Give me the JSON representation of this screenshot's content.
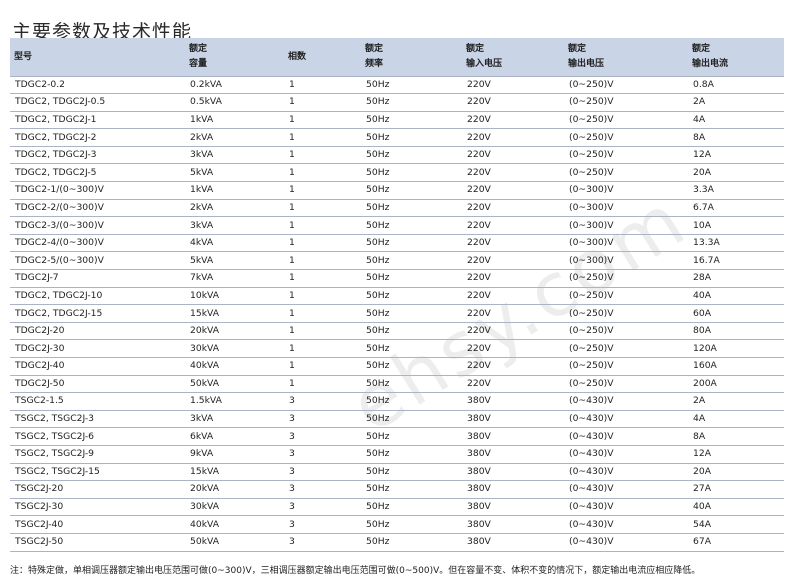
{
  "page_title": "主要参数及技术性能",
  "headers": {
    "model": "型号",
    "capacity_line1": "额定",
    "capacity_line2": "容量",
    "phases": "相数",
    "frequency_line1": "额定",
    "frequency_line2": "频率",
    "input_voltage_line1": "额定",
    "input_voltage_line2": "输入电压",
    "output_voltage_line1": "额定",
    "output_voltage_line2": "输出电压",
    "output_current_line1": "额定",
    "output_current_line2": "输出电流"
  },
  "rows": [
    [
      "TDGC2-0.2",
      "0.2kVA",
      "1",
      "50Hz",
      "220V",
      "(0~250)V",
      "0.8A"
    ],
    [
      "TDGC2, TDGC2J-0.5",
      "0.5kVA",
      "1",
      "50Hz",
      "220V",
      "(0~250)V",
      "2A"
    ],
    [
      "TDGC2, TDGC2J-1",
      "1kVA",
      "1",
      "50Hz",
      "220V",
      "(0~250)V",
      "4A"
    ],
    [
      "TDGC2, TDGC2J-2",
      "2kVA",
      "1",
      "50Hz",
      "220V",
      "(0~250)V",
      "8A"
    ],
    [
      "TDGC2, TDGC2J-3",
      "3kVA",
      "1",
      "50Hz",
      "220V",
      "(0~250)V",
      "12A"
    ],
    [
      "TDGC2, TDGC2J-5",
      "5kVA",
      "1",
      "50Hz",
      "220V",
      "(0~250)V",
      "20A"
    ],
    [
      "TDGC2-1/(0~300)V",
      "1kVA",
      "1",
      "50Hz",
      "220V",
      "(0~300)V",
      "3.3A"
    ],
    [
      "TDGC2-2/(0~300)V",
      "2kVA",
      "1",
      "50Hz",
      "220V",
      "(0~300)V",
      "6.7A"
    ],
    [
      "TDGC2-3/(0~300)V",
      "3kVA",
      "1",
      "50Hz",
      "220V",
      "(0~300)V",
      "10A"
    ],
    [
      "TDGC2-4/(0~300)V",
      "4kVA",
      "1",
      "50Hz",
      "220V",
      "(0~300)V",
      "13.3A"
    ],
    [
      "TDGC2-5/(0~300)V",
      "5kVA",
      "1",
      "50Hz",
      "220V",
      "(0~300)V",
      "16.7A"
    ],
    [
      "TDGC2J-7",
      "7kVA",
      "1",
      "50Hz",
      "220V",
      "(0~250)V",
      "28A"
    ],
    [
      "TDGC2, TDGC2J-10",
      "10kVA",
      "1",
      "50Hz",
      "220V",
      "(0~250)V",
      "40A"
    ],
    [
      "TDGC2, TDGC2J-15",
      "15kVA",
      "1",
      "50Hz",
      "220V",
      "(0~250)V",
      "60A"
    ],
    [
      "TDGC2J-20",
      "20kVA",
      "1",
      "50Hz",
      "220V",
      "(0~250)V",
      "80A"
    ],
    [
      "TDGC2J-30",
      "30kVA",
      "1",
      "50Hz",
      "220V",
      "(0~250)V",
      "120A"
    ],
    [
      "TDGC2J-40",
      "40kVA",
      "1",
      "50Hz",
      "220V",
      "(0~250)V",
      "160A"
    ],
    [
      "TDGC2J-50",
      "50kVA",
      "1",
      "50Hz",
      "220V",
      "(0~250)V",
      "200A"
    ],
    [
      "TSGC2-1.5",
      "1.5kVA",
      "3",
      "50Hz",
      "380V",
      "(0~430)V",
      "2A"
    ],
    [
      "TSGC2, TSGC2J-3",
      "3kVA",
      "3",
      "50Hz",
      "380V",
      "(0~430)V",
      "4A"
    ],
    [
      "TSGC2, TSGC2J-6",
      "6kVA",
      "3",
      "50Hz",
      "380V",
      "(0~430)V",
      "8A"
    ],
    [
      "TSGC2, TSGC2J-9",
      "9kVA",
      "3",
      "50Hz",
      "380V",
      "(0~430)V",
      "12A"
    ],
    [
      "TSGC2, TSGC2J-15",
      "15kVA",
      "3",
      "50Hz",
      "380V",
      "(0~430)V",
      "20A"
    ],
    [
      "TSGC2J-20",
      "20kVA",
      "3",
      "50Hz",
      "380V",
      "(0~430)V",
      "27A"
    ],
    [
      "TSGC2J-30",
      "30kVA",
      "3",
      "50Hz",
      "380V",
      "(0~430)V",
      "40A"
    ],
    [
      "TSGC2J-40",
      "40kVA",
      "3",
      "50Hz",
      "380V",
      "(0~430)V",
      "54A"
    ],
    [
      "TSGC2J-50",
      "50kVA",
      "3",
      "50Hz",
      "380V",
      "(0~430)V",
      "67A"
    ]
  ],
  "watermark": "ehsy.com",
  "footnote": "注：特殊定做，单相调压器额定输出电压范围可做(0~300)V，三相调压器额定输出电压范围可做(0~500)V。但在容量不变、体积不变的情况下，额定输出电流应相应降低。"
}
